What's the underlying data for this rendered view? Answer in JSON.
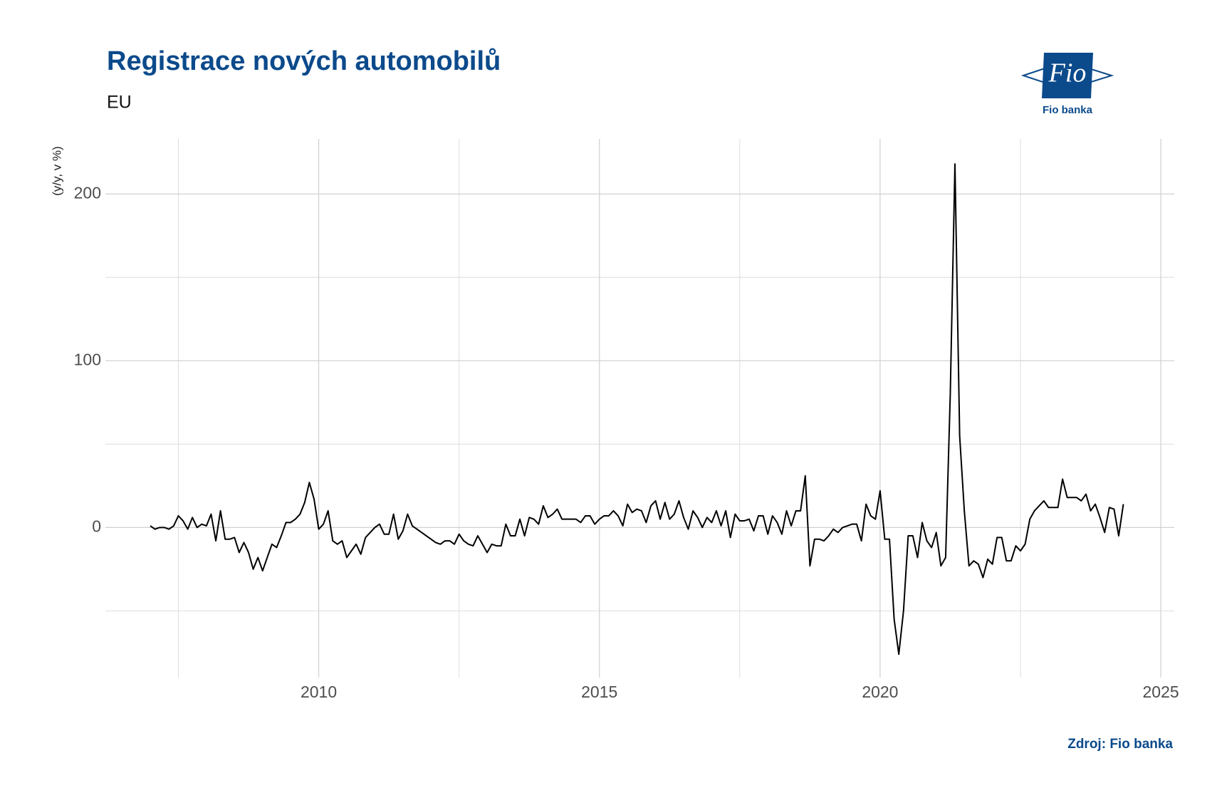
{
  "chart_data": {
    "type": "line",
    "title": "Registrace nových automobilů",
    "subtitle": "EU",
    "y_label": "(y/y, v %)",
    "source": "Zdroj: Fio banka",
    "logo": {
      "text": "Fio",
      "caption": "Fio banka"
    },
    "color": "#000000",
    "xlim": [
      2006.2,
      2025.24
    ],
    "xticks": [
      2010,
      2015,
      2020,
      2025
    ],
    "x_minor_ticks": [
      2007.5,
      2012.5,
      2017.5,
      2022.5
    ],
    "ylim": [
      -90,
      233
    ],
    "yticks": [
      0,
      100,
      200
    ],
    "y_minor_ticks": [
      -50,
      50,
      150
    ],
    "grid": true,
    "x": [
      2007.0,
      2007.083,
      2007.167,
      2007.25,
      2007.333,
      2007.417,
      2007.5,
      2007.583,
      2007.667,
      2007.75,
      2007.833,
      2007.917,
      2008.0,
      2008.083,
      2008.167,
      2008.25,
      2008.333,
      2008.417,
      2008.5,
      2008.583,
      2008.667,
      2008.75,
      2008.833,
      2008.917,
      2009.0,
      2009.083,
      2009.167,
      2009.25,
      2009.333,
      2009.417,
      2009.5,
      2009.583,
      2009.667,
      2009.75,
      2009.833,
      2009.917,
      2010.0,
      2010.083,
      2010.167,
      2010.25,
      2010.333,
      2010.417,
      2010.5,
      2010.583,
      2010.667,
      2010.75,
      2010.833,
      2010.917,
      2011.0,
      2011.083,
      2011.167,
      2011.25,
      2011.333,
      2011.417,
      2011.5,
      2011.583,
      2011.667,
      2011.75,
      2011.833,
      2011.917,
      2012.0,
      2012.083,
      2012.167,
      2012.25,
      2012.333,
      2012.417,
      2012.5,
      2012.583,
      2012.667,
      2012.75,
      2012.833,
      2012.917,
      2013.0,
      2013.083,
      2013.167,
      2013.25,
      2013.333,
      2013.417,
      2013.5,
      2013.583,
      2013.667,
      2013.75,
      2013.833,
      2013.917,
      2014.0,
      2014.083,
      2014.167,
      2014.25,
      2014.333,
      2014.417,
      2014.5,
      2014.583,
      2014.667,
      2014.75,
      2014.833,
      2014.917,
      2015.0,
      2015.083,
      2015.167,
      2015.25,
      2015.333,
      2015.417,
      2015.5,
      2015.583,
      2015.667,
      2015.75,
      2015.833,
      2015.917,
      2016.0,
      2016.083,
      2016.167,
      2016.25,
      2016.333,
      2016.417,
      2016.5,
      2016.583,
      2016.667,
      2016.75,
      2016.833,
      2016.917,
      2017.0,
      2017.083,
      2017.167,
      2017.25,
      2017.333,
      2017.417,
      2017.5,
      2017.583,
      2017.667,
      2017.75,
      2017.833,
      2017.917,
      2018.0,
      2018.083,
      2018.167,
      2018.25,
      2018.333,
      2018.417,
      2018.5,
      2018.583,
      2018.667,
      2018.75,
      2018.833,
      2018.917,
      2019.0,
      2019.083,
      2019.167,
      2019.25,
      2019.333,
      2019.417,
      2019.5,
      2019.583,
      2019.667,
      2019.75,
      2019.833,
      2019.917,
      2020.0,
      2020.083,
      2020.167,
      2020.25,
      2020.333,
      2020.417,
      2020.5,
      2020.583,
      2020.667,
      2020.75,
      2020.833,
      2020.917,
      2021.0,
      2021.083,
      2021.167,
      2021.25,
      2021.333,
      2021.417,
      2021.5,
      2021.583,
      2021.667,
      2021.75,
      2021.833,
      2021.917,
      2022.0,
      2022.083,
      2022.167,
      2022.25,
      2022.333,
      2022.417,
      2022.5,
      2022.583,
      2022.667,
      2022.75,
      2022.833,
      2022.917,
      2023.0,
      2023.083,
      2023.167,
      2023.25,
      2023.333,
      2023.417,
      2023.5,
      2023.583,
      2023.667,
      2023.75,
      2023.833,
      2023.917,
      2024.0,
      2024.083,
      2024.167,
      2024.25,
      2024.333
    ],
    "values": [
      1,
      -1,
      0,
      0,
      -1,
      1,
      7,
      4,
      -1,
      6,
      0,
      2,
      1,
      8,
      -8,
      10,
      -7,
      -7,
      -6,
      -15,
      -9,
      -15,
      -25,
      -18,
      -26,
      -18,
      -10,
      -12,
      -5,
      3,
      3,
      5,
      8,
      15,
      27,
      17,
      -1,
      2,
      10,
      -8,
      -10,
      -8,
      -18,
      -14,
      -10,
      -16,
      -6,
      -3,
      0,
      2,
      -4,
      -4,
      8,
      -7,
      -2,
      8,
      1,
      -1,
      -3,
      -5,
      -7,
      -9,
      -10,
      -8,
      -8,
      -10,
      -4,
      -8,
      -10,
      -11,
      -5,
      -10,
      -15,
      -10,
      -11,
      -11,
      2,
      -5,
      -5,
      5,
      -5,
      6,
      5,
      2,
      13,
      6,
      8,
      11,
      5,
      5,
      5,
      5,
      3,
      7,
      7,
      2,
      5,
      7,
      7,
      10,
      7,
      1,
      14,
      9,
      11,
      10,
      3,
      13,
      16,
      5,
      15,
      5,
      8,
      16,
      6,
      -1,
      10,
      6,
      0,
      6,
      3,
      10,
      1,
      10,
      -6,
      8,
      4,
      4,
      5,
      -2,
      7,
      7,
      -4,
      7,
      3,
      -4,
      10,
      1,
      10,
      10,
      31,
      -23,
      -7,
      -7,
      -8,
      -5,
      -1,
      -3,
      0,
      1,
      2,
      2,
      -8,
      14,
      7,
      5,
      22,
      -7,
      -7,
      -55,
      -76,
      -50,
      -5,
      -5,
      -18,
      3,
      -8,
      -12,
      -3,
      -23,
      -18,
      80,
      218,
      55,
      10,
      -23,
      -20,
      -22,
      -30,
      -19,
      -22,
      -6,
      -6,
      -20,
      -20,
      -11,
      -14,
      -10,
      5,
      10,
      13,
      16,
      12,
      12,
      12,
      29,
      18,
      18,
      18,
      16,
      20,
      10,
      14,
      6,
      -3,
      12,
      11,
      -5,
      14
    ]
  }
}
